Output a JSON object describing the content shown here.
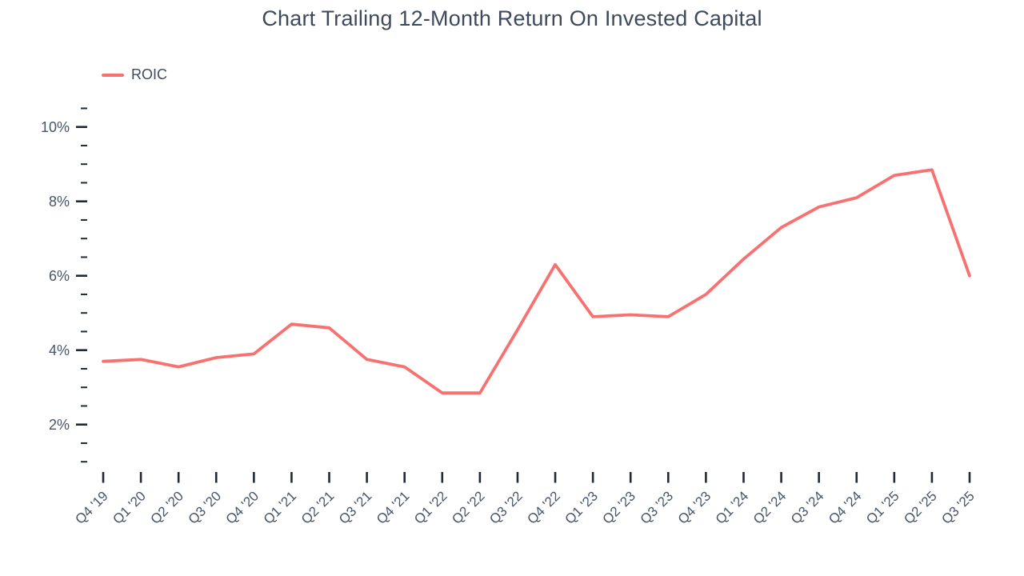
{
  "page": {
    "title": "Chart Trailing 12-Month Return On Invested Capital"
  },
  "legend": {
    "items": [
      {
        "label": "ROIC",
        "color": "#F87171"
      }
    ]
  },
  "colors": {
    "line": "#F87171",
    "title_text": "#3E4A5B",
    "axis_label_text": "#475569",
    "tick_mark": "#1F2937",
    "background": "#FFFFFF"
  },
  "chart_data": {
    "type": "line",
    "title": "Chart Trailing 12-Month Return On Invested Capital",
    "xlabel": "",
    "ylabel": "",
    "categories": [
      "Q4 '19",
      "Q1 '20",
      "Q2 '20",
      "Q3 '20",
      "Q4 '20",
      "Q1 '21",
      "Q2 '21",
      "Q3 '21",
      "Q4 '21",
      "Q1 '22",
      "Q2 '22",
      "Q3 '22",
      "Q4 '22",
      "Q1 '23",
      "Q2 '23",
      "Q3 '23",
      "Q4 '23",
      "Q1 '24",
      "Q2 '24",
      "Q3 '24",
      "Q4 '24",
      "Q1 '25",
      "Q2 '25",
      "Q3 '25"
    ],
    "series": [
      {
        "name": "ROIC",
        "color": "#F87171",
        "values": [
          3.7,
          3.75,
          3.55,
          3.8,
          3.9,
          4.7,
          4.6,
          3.75,
          3.55,
          2.85,
          2.85,
          4.55,
          6.3,
          4.9,
          4.95,
          4.9,
          5.5,
          6.45,
          7.3,
          7.85,
          8.1,
          8.7,
          8.85,
          6.0
        ]
      }
    ],
    "ylim": [
      1.0,
      10.5
    ],
    "ytick_major_values": [
      2,
      4,
      6,
      8,
      10
    ],
    "ytick_labels": [
      "2%",
      "4%",
      "6%",
      "8%",
      "10%"
    ],
    "ytick_minor_interval": 0.5,
    "ytick_unit": "%",
    "grid": false,
    "legend_position": "top-left"
  }
}
